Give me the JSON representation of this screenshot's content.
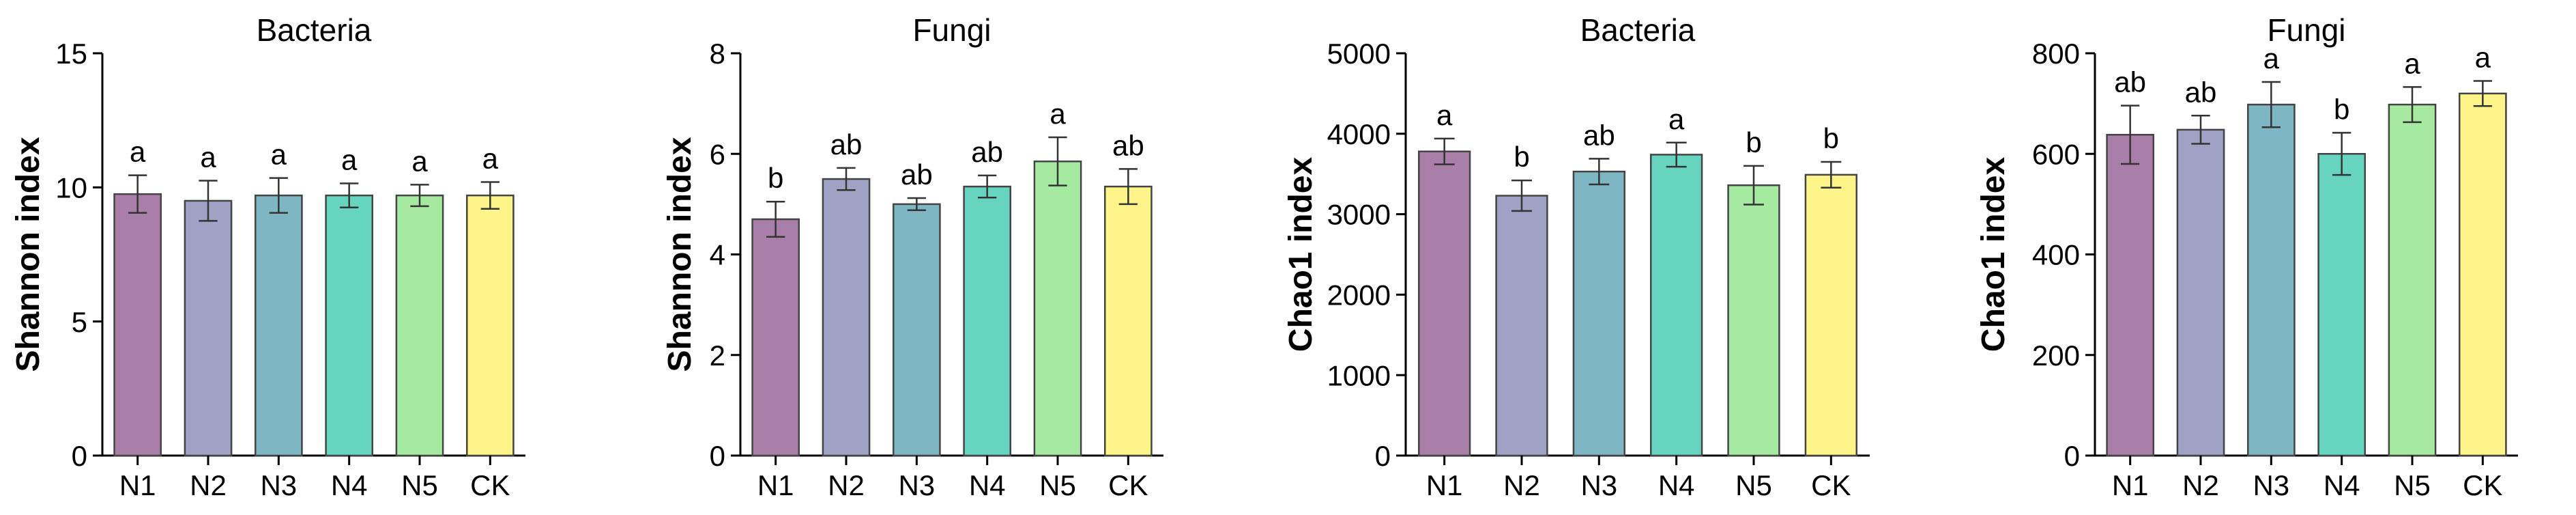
{
  "colors": [
    "#a97ea8",
    "#9fa1c5",
    "#7eb6c4",
    "#66d4bf",
    "#a6eaa2",
    "#fff48a"
  ],
  "chart_data": [
    {
      "type": "bar",
      "title": "Bacteria",
      "ylabel": "Shannon index",
      "categories": [
        "N1",
        "N2",
        "N3",
        "N4",
        "N5",
        "CK"
      ],
      "values": [
        9.75,
        9.5,
        9.7,
        9.7,
        9.7,
        9.7
      ],
      "errors": [
        0.7,
        0.75,
        0.65,
        0.45,
        0.4,
        0.5
      ],
      "letters": [
        "a",
        "a",
        "a",
        "a",
        "a",
        "a"
      ],
      "ylim": [
        0,
        15
      ],
      "yticks": [
        0,
        5,
        10,
        15
      ],
      "ytick_labels": [
        "0",
        "5",
        "10",
        "15"
      ]
    },
    {
      "type": "bar",
      "title": "Fungi",
      "ylabel": "Shannon index",
      "categories": [
        "N1",
        "N2",
        "N3",
        "N4",
        "N5",
        "CK"
      ],
      "values": [
        4.7,
        5.5,
        5.0,
        5.35,
        5.85,
        5.35
      ],
      "errors": [
        0.35,
        0.22,
        0.12,
        0.22,
        0.48,
        0.35
      ],
      "letters": [
        "b",
        "ab",
        "ab",
        "ab",
        "a",
        "ab"
      ],
      "ylim": [
        0,
        8
      ],
      "yticks": [
        0,
        2,
        4,
        6,
        8
      ],
      "ytick_labels": [
        "0",
        "2",
        "4",
        "6",
        "8"
      ]
    },
    {
      "type": "bar",
      "title": "Bacteria",
      "ylabel": "Chao1 index",
      "categories": [
        "N1",
        "N2",
        "N3",
        "N4",
        "N5",
        "CK"
      ],
      "values": [
        3780,
        3230,
        3530,
        3740,
        3360,
        3490
      ],
      "errors": [
        160,
        190,
        160,
        150,
        240,
        160
      ],
      "letters": [
        "a",
        "b",
        "ab",
        "a",
        "b",
        "b"
      ],
      "ylim": [
        0,
        5000
      ],
      "yticks": [
        0,
        1000,
        2000,
        3000,
        4000,
        5000
      ],
      "ytick_labels": [
        "0",
        "1000",
        "2000",
        "3000",
        "4000",
        "5000"
      ]
    },
    {
      "type": "bar",
      "title": "Fungi",
      "ylabel": "Chao1 index",
      "categories": [
        "N1",
        "N2",
        "N3",
        "N4",
        "N5",
        "CK"
      ],
      "values": [
        638,
        648,
        698,
        600,
        698,
        720
      ],
      "errors": [
        58,
        28,
        45,
        42,
        35,
        25
      ],
      "letters": [
        "ab",
        "ab",
        "a",
        "b",
        "a",
        "a"
      ],
      "ylim": [
        0,
        800
      ],
      "yticks": [
        0,
        200,
        400,
        600,
        800
      ],
      "ytick_labels": [
        "0",
        "200",
        "400",
        "600",
        "800"
      ]
    }
  ]
}
